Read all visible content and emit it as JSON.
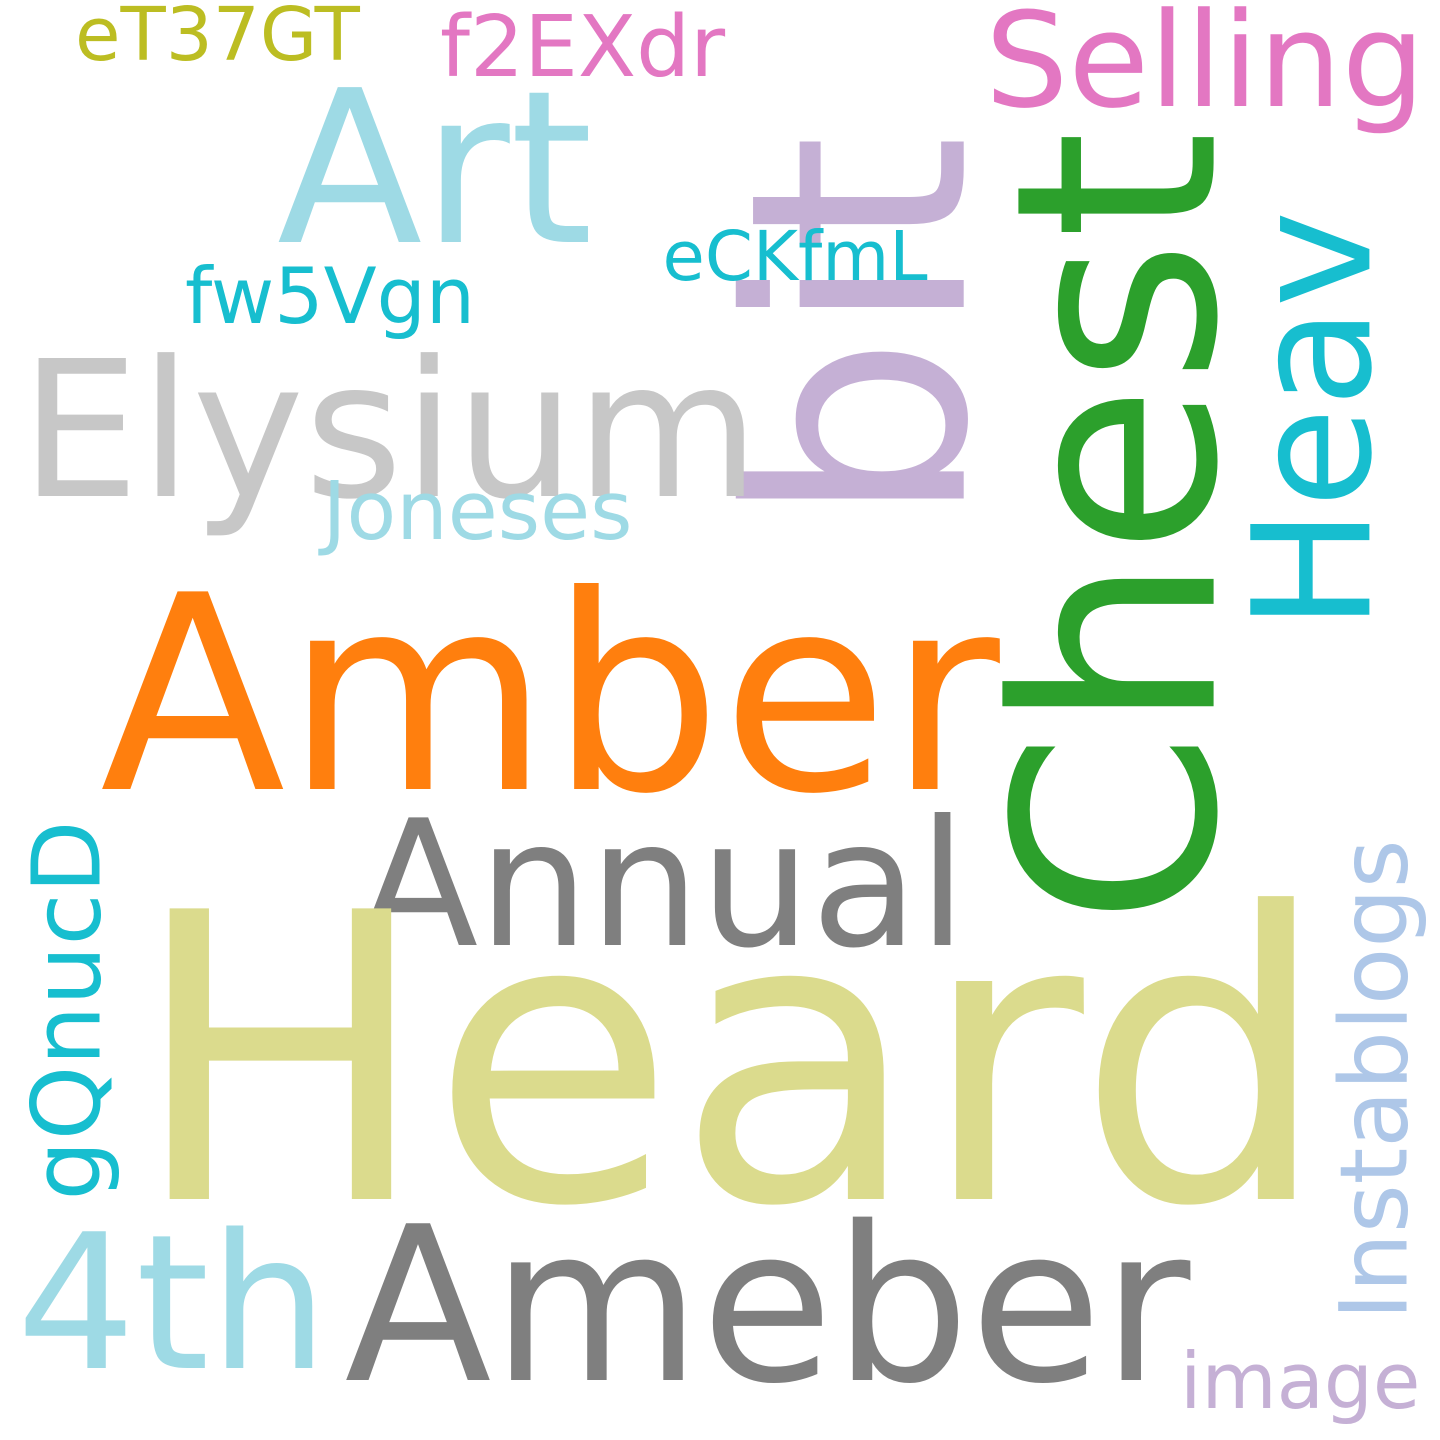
{
  "words": [
    {
      "text": "eT37GT",
      "color": "#bcbd22",
      "rotated": false
    },
    {
      "text": "f2EXdr",
      "color": "#e377c2",
      "rotated": false
    },
    {
      "text": "Selling",
      "color": "#e377c2",
      "rotated": false
    },
    {
      "text": "Art",
      "color": "#9edae5",
      "rotated": false
    },
    {
      "text": "bit",
      "color": "#c5b0d5",
      "rotated": true
    },
    {
      "text": "Chest",
      "color": "#2ca02c",
      "rotated": true
    },
    {
      "text": "Heav",
      "color": "#17becf",
      "rotated": true
    },
    {
      "text": "eCKfmL",
      "color": "#17becf",
      "rotated": false
    },
    {
      "text": "fw5Vgn",
      "color": "#17becf",
      "rotated": false
    },
    {
      "text": "Elysium",
      "color": "#c7c7c7",
      "rotated": false
    },
    {
      "text": "Joneses",
      "color": "#9edae5",
      "rotated": false
    },
    {
      "text": "Amber",
      "color": "#ff7f0e",
      "rotated": false
    },
    {
      "text": "Annual",
      "color": "#7f7f7f",
      "rotated": false
    },
    {
      "text": "gQnucD",
      "color": "#17becf",
      "rotated": true
    },
    {
      "text": "Heard",
      "color": "#dbdb8d",
      "rotated": false
    },
    {
      "text": "Instablogs",
      "color": "#aec7e8",
      "rotated": true
    },
    {
      "text": "4th",
      "color": "#9edae5",
      "rotated": false
    },
    {
      "text": "Ameber",
      "color": "#7f7f7f",
      "rotated": false
    },
    {
      "text": "image",
      "color": "#c5b0d5",
      "rotated": false
    }
  ]
}
